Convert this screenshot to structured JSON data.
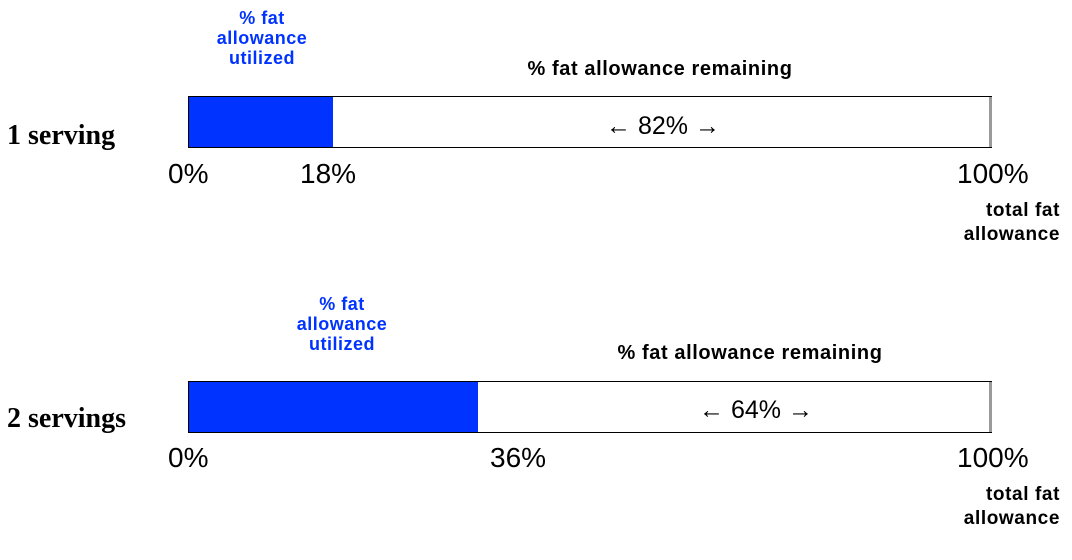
{
  "panels": [
    {
      "label": "1 serving",
      "utilized_label_lines": [
        "% fat",
        "allowance",
        "utilized"
      ],
      "remaining_label": "% fat allowance remaining",
      "remaining_value": "← 82% →",
      "utilized_fraction": 0.18,
      "tick_start": "0%",
      "tick_mid": "18%",
      "tick_end": "100%",
      "total_label_lines": [
        "total fat",
        "allowance"
      ]
    },
    {
      "label": "2 servings",
      "utilized_label_lines": [
        "% fat",
        "allowance",
        "utilized"
      ],
      "remaining_label": "% fat allowance remaining",
      "remaining_value": "← 64% →",
      "utilized_fraction": 0.36,
      "tick_start": "0%",
      "tick_mid": "36%",
      "tick_end": "100%",
      "total_label_lines": [
        "total fat",
        "allowance"
      ]
    }
  ],
  "colors": {
    "utilized": "#0033ff",
    "bar_border": "#000000",
    "bar_background": "#ffffff"
  }
}
